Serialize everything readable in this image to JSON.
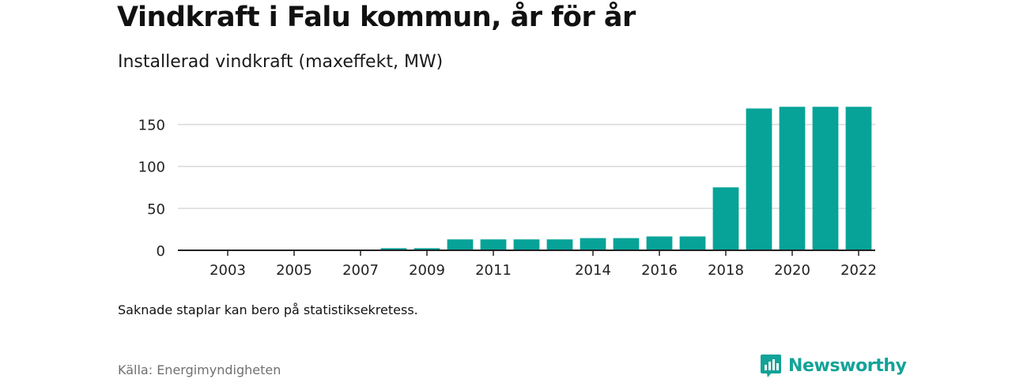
{
  "title": "Vindkraft i Falu kommun, år för år",
  "subtitle": "Installerad vindkraft (maxeffekt, MW)",
  "note": "Saknade staplar kan bero på statistiksekretess.",
  "source": "Källa: Energimyndigheten",
  "brand": {
    "name": "Newsworthy",
    "icon": "newsworthy-logo-icon",
    "color": "#13a398"
  },
  "chart_data": {
    "type": "bar",
    "categories": [
      "2002",
      "2003",
      "2004",
      "2005",
      "2006",
      "2007",
      "2008",
      "2009",
      "2010",
      "2011",
      "2012",
      "2013",
      "2014",
      "2015",
      "2016",
      "2017",
      "2018",
      "2019",
      "2020",
      "2021",
      "2022"
    ],
    "x_tick_labels": [
      "2003",
      "2005",
      "2007",
      "2009",
      "2011",
      "2014",
      "2016",
      "2018",
      "2020",
      "2022"
    ],
    "values": [
      0,
      0,
      0,
      0,
      0,
      0,
      2.5,
      2.5,
      13,
      13,
      13,
      13,
      14.5,
      14.5,
      16.5,
      16.5,
      75,
      169,
      171,
      171,
      171
    ],
    "ylim": [
      0,
      175
    ],
    "y_ticks": [
      0,
      50,
      100,
      150
    ],
    "bar_color": "#07a398",
    "grid": true
  }
}
